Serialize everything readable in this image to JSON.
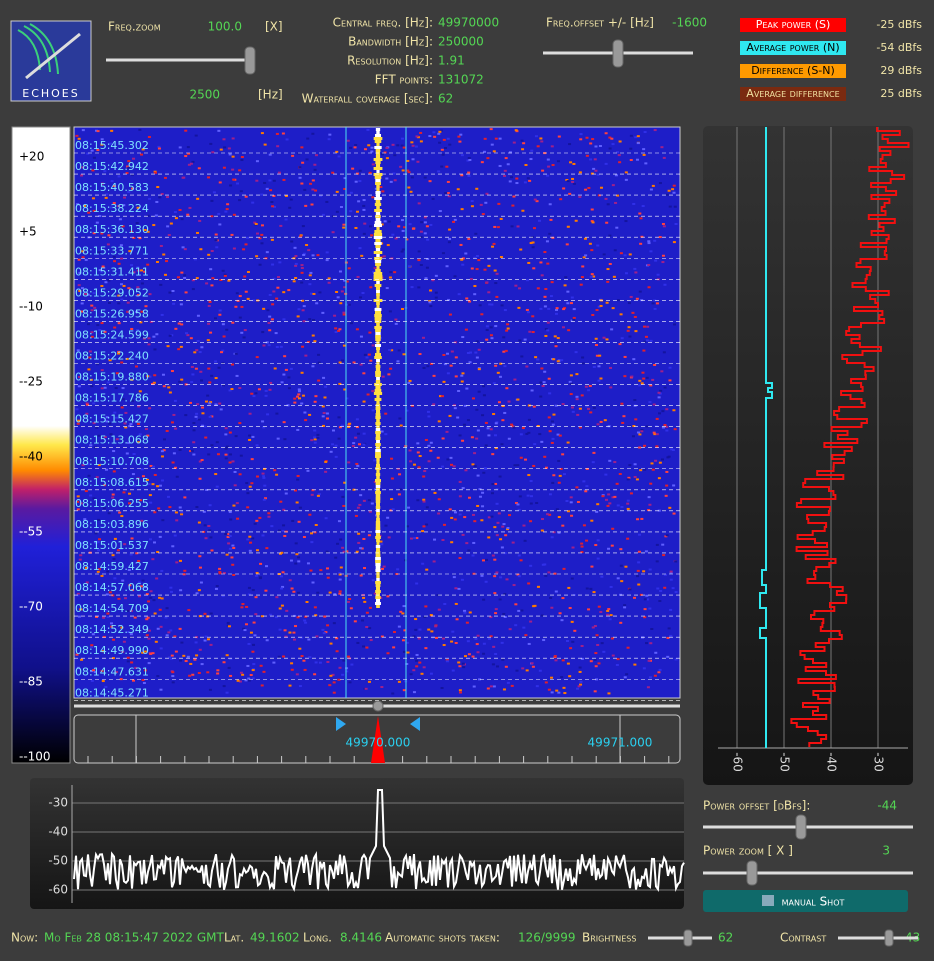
{
  "logo": "ECHOES",
  "freq_zoom": {
    "label": "Freq.zoom",
    "value": "100.0",
    "unit": "[X]",
    "hz_value": "2500",
    "hz_unit": "[Hz]"
  },
  "info": [
    {
      "label": "Central freq. [Hz]:",
      "value": "49970000"
    },
    {
      "label": "Bandwidth [Hz]:",
      "value": "250000"
    },
    {
      "label": "Resolution [Hz]:",
      "value": "1.91"
    },
    {
      "label": "FFT points:",
      "value": "131072"
    },
    {
      "label": "Waterfall coverage [sec]:",
      "value": "62"
    }
  ],
  "freq_offset": {
    "label": "Freq.offset +/- [Hz]",
    "value": "-1600"
  },
  "legend": [
    {
      "label": "Peak power (S)",
      "value": "-25 dBfs"
    },
    {
      "label": "Average power (N)",
      "value": "-54 dBfs"
    },
    {
      "label": "Difference (S-N)",
      "value": "29 dBfs"
    },
    {
      "label": "Average difference",
      "value": "25 dBfs"
    }
  ],
  "color_scale": [
    "+20",
    "+5",
    "--10",
    "--25",
    "--40",
    "--55",
    "--70",
    "--85",
    "--100"
  ],
  "timestamps": [
    "08:15:45.302",
    "08:15:42.942",
    "08:15:40.583",
    "08:15:38.224",
    "08:15:36.130",
    "08:15:33.771",
    "08:15:31.411",
    "08:15:29.052",
    "08:15:26.958",
    "08:15:24.599",
    "08:15:22.240",
    "08:15:19.880",
    "08:15:17.786",
    "08:15:15.427",
    "08:15:13.068",
    "08:15:10.708",
    "08:15:08.615",
    "08:15:06.255",
    "08:15:03.896",
    "08:15:01.537",
    "08:14:59.427",
    "08:14:57.068",
    "08:14:54.709",
    "08:14:52.349",
    "08:14:49.990",
    "08:14:47.631",
    "08:14:45.271"
  ],
  "freq_ruler": [
    "49970.000",
    "49971.000"
  ],
  "power_axis": [
    "-60",
    "-50",
    "-40",
    "-30"
  ],
  "spectrum_axis": [
    "-30",
    "-40",
    "-50",
    "-60"
  ],
  "controls": {
    "power_offset_label": "Power offset [dBfs]:",
    "power_offset_value": "-44",
    "power_zoom_label": "Power zoom [ X ]",
    "power_zoom_value": "3",
    "button": "manual Shot"
  },
  "status": {
    "now_label": "Now:",
    "now": "Mo Feb 28 08:15:47 2022 GMT",
    "lat_label": "Lat.",
    "lat": "49.1602",
    "long_label": "Long.",
    "long": "8.4146",
    "shots_label": "Automatic shots taken:",
    "shots": "126/9999",
    "brightness_label": "Brightness",
    "brightness": "62",
    "contrast_label": "Contrast",
    "contrast": "43"
  }
}
